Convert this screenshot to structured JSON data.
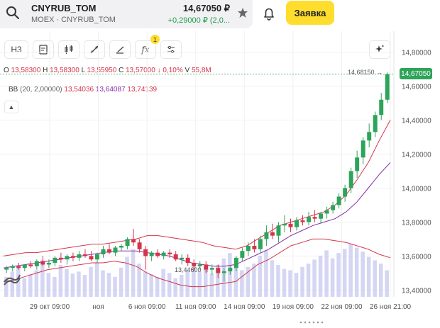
{
  "header": {
    "ticker": "CNYRUB_TOM",
    "exchange": "MOEX · CNYRUB_TOM",
    "price": "14,67050 ₽",
    "change": "+0,29000 ₽ (2,0...",
    "order_button": "Заявка"
  },
  "toolbar": {
    "interval": "H3",
    "fx_label": "fx",
    "fx_badge": "1"
  },
  "ohlc": {
    "o_label": "O",
    "o": "13,58300",
    "h_label": "H",
    "h": "13,58300",
    "l_label": "L",
    "l": "13,55950",
    "c_label": "C",
    "c": "13,57000",
    "change": "↓ 0,10%",
    "v_label": "V",
    "v": "55,8M"
  },
  "bb": {
    "label": "BB",
    "params": "(20, 2,00000)",
    "lower": "13,54036",
    "middle": "13,64087",
    "upper": "13,74139"
  },
  "annotations": {
    "last_price_line": "14,68150 →",
    "last_price_tag": "14,67050",
    "min_marker": "13,44600 →"
  },
  "colors": {
    "up": "#2ea35a",
    "down": "#d6334a",
    "bb_upper": "#d6334a",
    "bb_middle": "#8a2ca8",
    "bb_lower": "#d6334a",
    "volume": "#c9ccf0",
    "accent": "#ffdd2d"
  },
  "chart_data": {
    "type": "candlestick",
    "y_ticks": [
      "14,80000",
      "14,60000",
      "14,40000",
      "14,20000",
      "14,00000",
      "13,80000",
      "13,60000",
      "13,40000"
    ],
    "ylim": [
      13.36,
      14.84
    ],
    "x_ticks": [
      "29 окт 09:00",
      "ноя",
      "6 ноя 09:00",
      "11 ноя 09:00",
      "14 ноя 09:00",
      "19 ноя 09:00",
      "22 ноя 09:00",
      "26 ноя 21:00"
    ],
    "candles": [
      [
        13.52,
        13.54,
        13.5,
        13.53
      ],
      [
        13.53,
        13.55,
        13.51,
        13.54
      ],
      [
        13.54,
        13.56,
        13.52,
        13.53
      ],
      [
        13.53,
        13.55,
        13.51,
        13.55
      ],
      [
        13.55,
        13.57,
        13.53,
        13.54
      ],
      [
        13.54,
        13.58,
        13.52,
        13.57
      ],
      [
        13.57,
        13.6,
        13.54,
        13.55
      ],
      [
        13.55,
        13.58,
        13.53,
        13.56
      ],
      [
        13.56,
        13.6,
        13.54,
        13.59
      ],
      [
        13.59,
        13.62,
        13.56,
        13.58
      ],
      [
        13.58,
        13.61,
        13.55,
        13.6
      ],
      [
        13.6,
        13.62,
        13.57,
        13.59
      ],
      [
        13.59,
        13.63,
        13.57,
        13.61
      ],
      [
        13.61,
        13.64,
        13.59,
        13.6
      ],
      [
        13.6,
        13.63,
        13.57,
        13.58
      ],
      [
        13.58,
        13.62,
        13.56,
        13.61
      ],
      [
        13.61,
        13.66,
        13.59,
        13.64
      ],
      [
        13.64,
        13.67,
        13.61,
        13.62
      ],
      [
        13.62,
        13.66,
        13.6,
        13.65
      ],
      [
        13.65,
        13.67,
        13.63,
        13.66
      ],
      [
        13.66,
        13.71,
        13.64,
        13.7
      ],
      [
        13.7,
        13.76,
        13.66,
        13.68
      ],
      [
        13.68,
        13.7,
        13.62,
        13.64
      ],
      [
        13.64,
        13.66,
        13.52,
        13.6
      ],
      [
        13.6,
        13.63,
        13.57,
        13.62
      ],
      [
        13.62,
        13.64,
        13.59,
        13.6
      ],
      [
        13.6,
        13.63,
        13.58,
        13.62
      ],
      [
        13.62,
        13.64,
        13.59,
        13.61
      ],
      [
        13.61,
        13.63,
        13.57,
        13.58
      ],
      [
        13.58,
        13.61,
        13.55,
        13.59
      ],
      [
        13.59,
        13.61,
        13.54,
        13.56
      ],
      [
        13.56,
        13.58,
        13.52,
        13.54
      ],
      [
        13.54,
        13.57,
        13.52,
        13.55
      ],
      [
        13.55,
        13.57,
        13.5,
        13.52
      ],
      [
        13.52,
        13.55,
        13.49,
        13.53
      ],
      [
        13.53,
        13.55,
        13.47,
        13.5
      ],
      [
        13.5,
        13.53,
        13.45,
        13.51
      ],
      [
        13.51,
        13.54,
        13.49,
        13.53
      ],
      [
        13.53,
        13.6,
        13.51,
        13.59
      ],
      [
        13.59,
        13.65,
        13.57,
        13.63
      ],
      [
        13.63,
        13.68,
        13.6,
        13.66
      ],
      [
        13.66,
        13.7,
        13.62,
        13.64
      ],
      [
        13.64,
        13.72,
        13.62,
        13.7
      ],
      [
        13.7,
        13.78,
        13.66,
        13.74
      ],
      [
        13.74,
        13.79,
        13.7,
        13.72
      ],
      [
        13.72,
        13.8,
        13.68,
        13.78
      ],
      [
        13.78,
        13.84,
        13.74,
        13.79
      ],
      [
        13.79,
        13.82,
        13.74,
        13.77
      ],
      [
        13.77,
        13.83,
        13.75,
        13.81
      ],
      [
        13.81,
        13.84,
        13.78,
        13.8
      ],
      [
        13.8,
        13.86,
        13.78,
        13.83
      ],
      [
        13.83,
        13.87,
        13.8,
        13.82
      ],
      [
        13.82,
        13.86,
        13.79,
        13.85
      ],
      [
        13.85,
        13.89,
        13.82,
        13.87
      ],
      [
        13.87,
        13.92,
        13.85,
        13.9
      ],
      [
        13.9,
        13.97,
        13.88,
        13.95
      ],
      [
        13.95,
        14.02,
        13.92,
        14.0
      ],
      [
        14.0,
        14.12,
        13.97,
        14.1
      ],
      [
        14.1,
        14.22,
        14.06,
        14.18
      ],
      [
        14.18,
        14.3,
        14.14,
        14.28
      ],
      [
        14.28,
        14.38,
        14.24,
        14.33
      ],
      [
        14.33,
        14.45,
        14.3,
        14.43
      ],
      [
        14.43,
        14.56,
        14.4,
        14.52
      ],
      [
        14.52,
        14.68,
        14.5,
        14.67
      ]
    ],
    "bb_upper": [
      13.6,
      13.61,
      13.62,
      13.62,
      13.63,
      13.64,
      13.65,
      13.66,
      13.67,
      13.67,
      13.68,
      13.69,
      13.7,
      13.72,
      13.72,
      13.71,
      13.7,
      13.69,
      13.68,
      13.66,
      13.65,
      13.64,
      13.66,
      13.7,
      13.74,
      13.78,
      13.8,
      13.82,
      13.84,
      13.86,
      13.9,
      13.96,
      14.05,
      14.15,
      14.28,
      14.4
    ],
    "bb_middle": [
      13.53,
      13.54,
      13.55,
      13.56,
      13.57,
      13.58,
      13.59,
      13.6,
      13.61,
      13.62,
      13.63,
      13.63,
      13.63,
      13.62,
      13.61,
      13.6,
      13.58,
      13.56,
      13.55,
      13.54,
      13.54,
      13.55,
      13.58,
      13.61,
      13.64,
      13.68,
      13.72,
      13.75,
      13.78,
      13.8,
      13.82,
      13.86,
      13.92,
      14.0,
      14.08,
      14.15
    ],
    "bb_lower": [
      13.45,
      13.46,
      13.48,
      13.5,
      13.52,
      13.53,
      13.54,
      13.55,
      13.56,
      13.56,
      13.57,
      13.56,
      13.54,
      13.5,
      13.47,
      13.45,
      13.43,
      13.42,
      13.42,
      13.43,
      13.44,
      13.45,
      13.5,
      13.55,
      13.58,
      13.62,
      13.66,
      13.68,
      13.7,
      13.7,
      13.69,
      13.68,
      13.66,
      13.64,
      13.61,
      13.59
    ],
    "volume": [
      30,
      38,
      45,
      28,
      34,
      40,
      55,
      36,
      30,
      48,
      42,
      35,
      38,
      33,
      45,
      52,
      40,
      36,
      30,
      44,
      60,
      72,
      50,
      38,
      34,
      30,
      42,
      36,
      28,
      33,
      40,
      46,
      38,
      44,
      35,
      48,
      58,
      66,
      52,
      40,
      45,
      50,
      62,
      70,
      55,
      48,
      42,
      40,
      36,
      45,
      50,
      56,
      62,
      70,
      58,
      66,
      72,
      80,
      74,
      68,
      60,
      55,
      50,
      40
    ]
  }
}
